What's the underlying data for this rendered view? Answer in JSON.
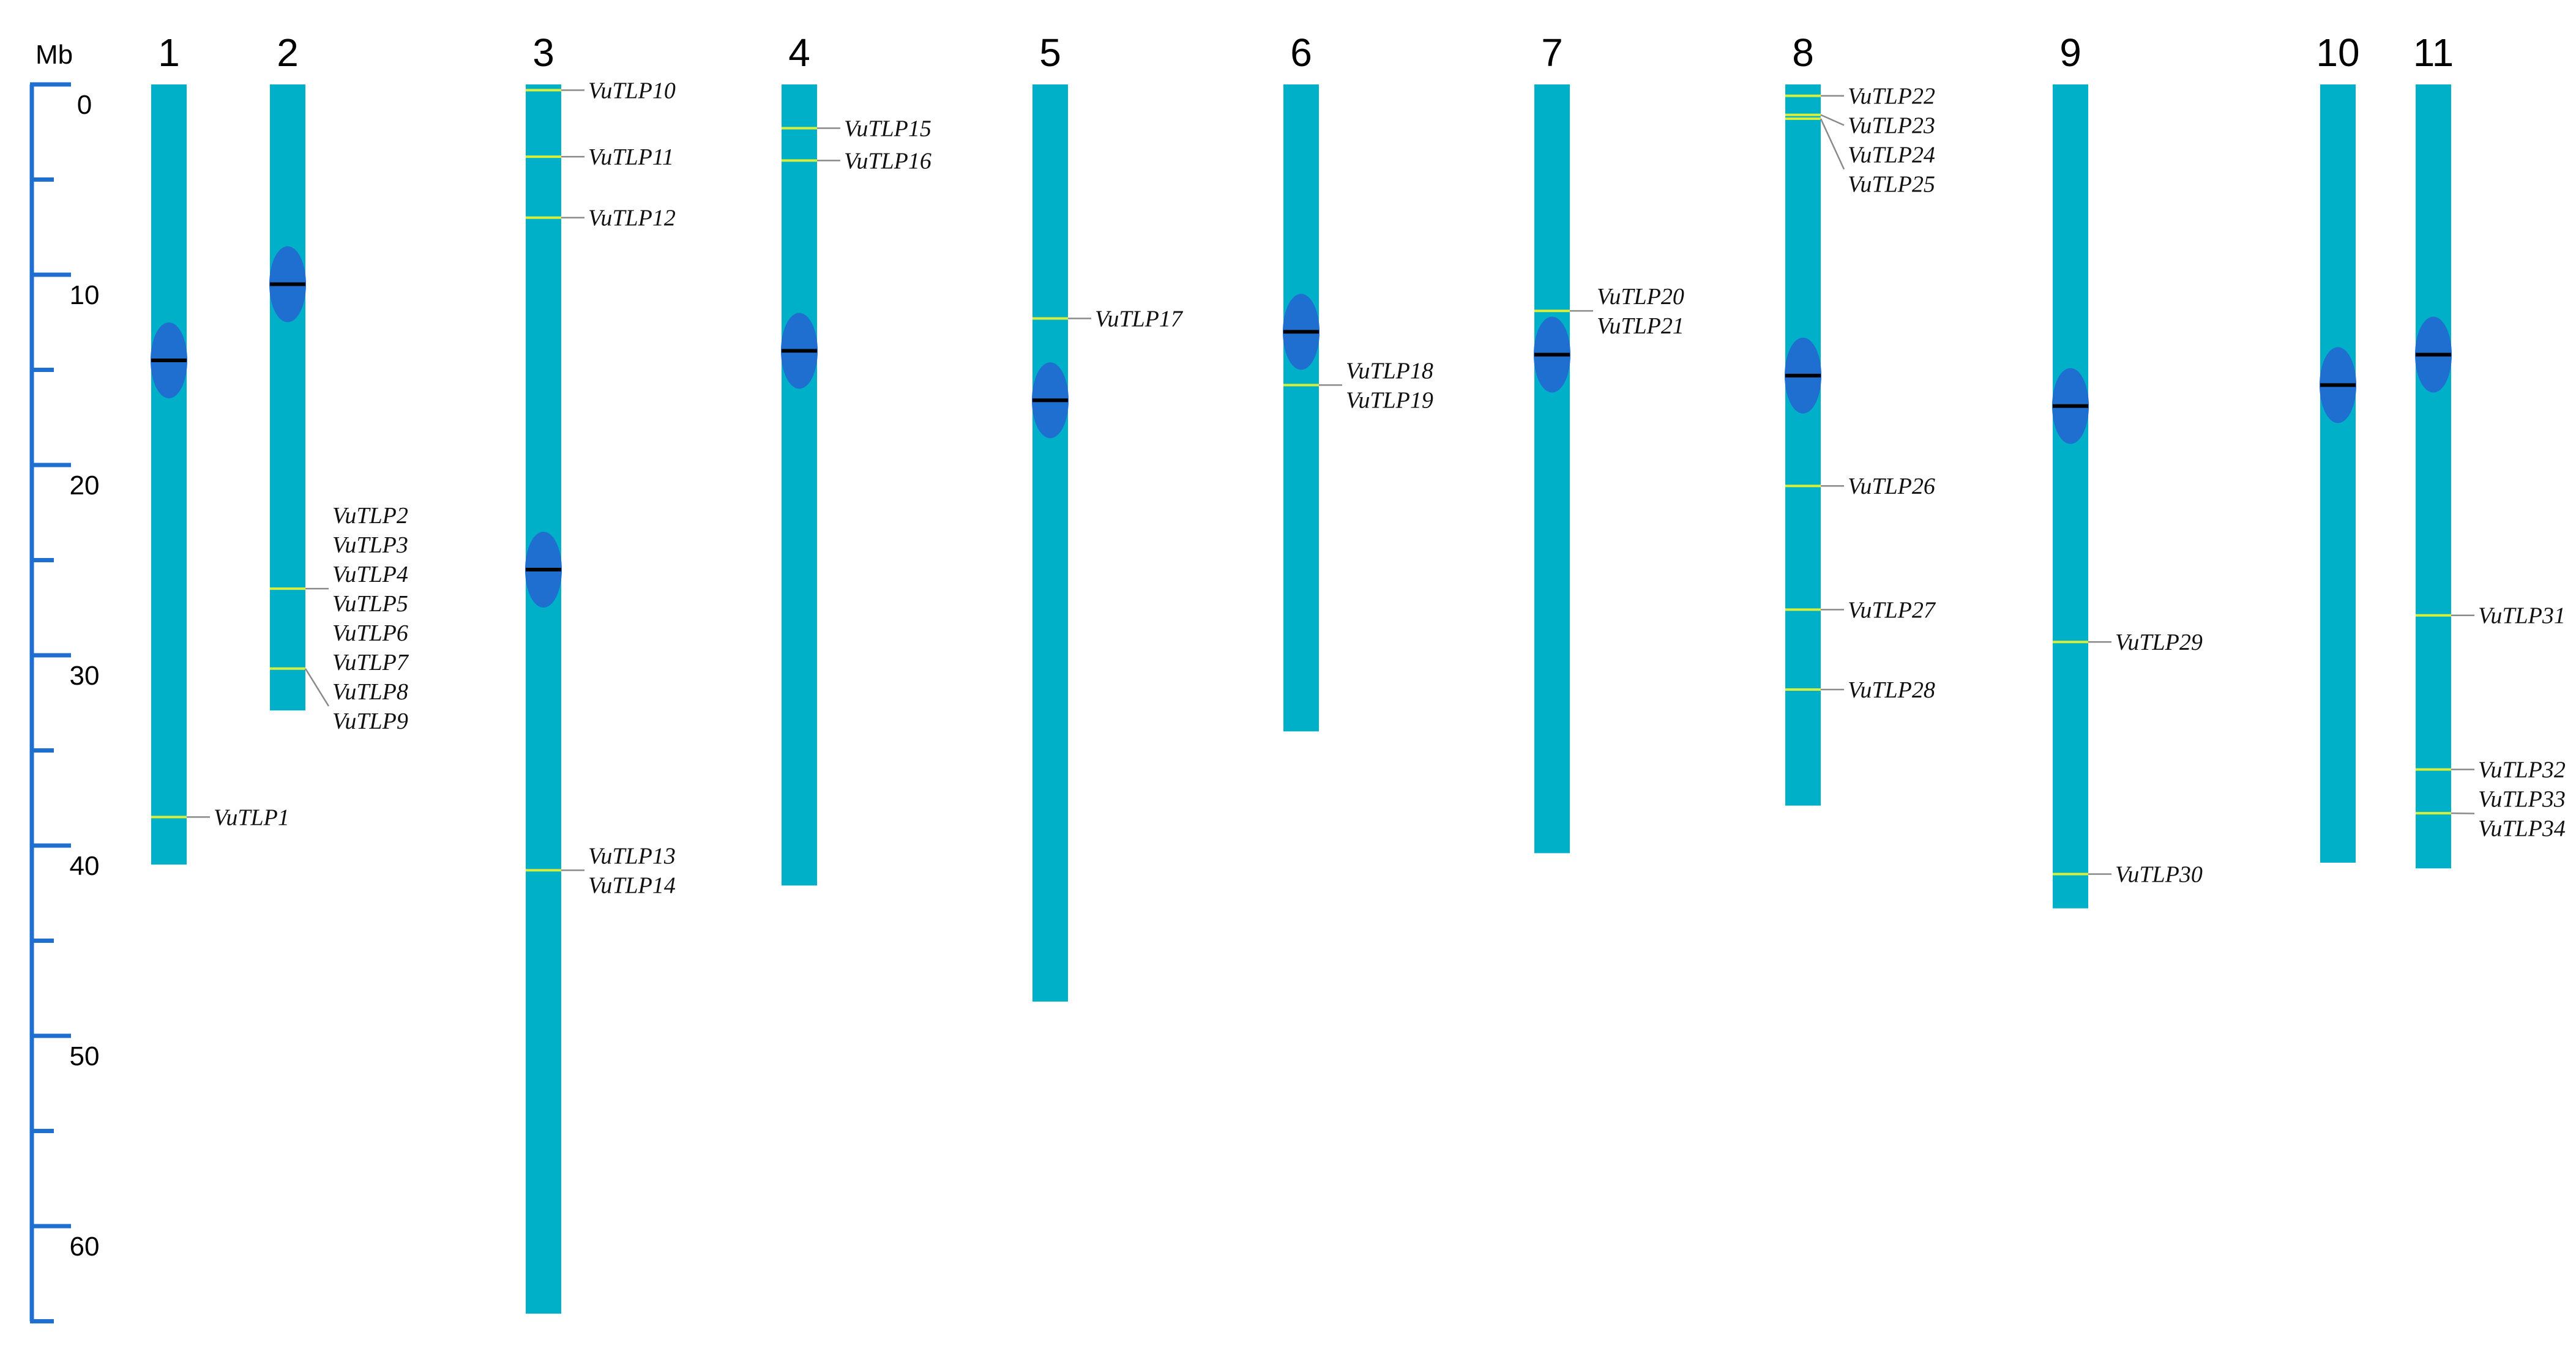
{
  "scale": {
    "unit": "Mb",
    "ticks": [
      0,
      10,
      20,
      30,
      40,
      50,
      60
    ],
    "max": 65
  },
  "colors": {
    "chromosome": "#00b0c8",
    "centromere": "#1f6fd0",
    "centromere_line": "#000000",
    "gene_marker": "#d8ee3a",
    "leader_line": "#8a8a8a",
    "axis": "#1f6fd0"
  },
  "chromosomes": [
    {
      "name": "1",
      "length": 41.0,
      "centromere": 14.5,
      "genes": [
        {
          "pos": 38.5,
          "labels": [
            "VuTLP1"
          ]
        }
      ]
    },
    {
      "name": "2",
      "length": 32.9,
      "centromere": 10.5,
      "genes": [
        {
          "pos": 26.5,
          "labels": [
            "VuTLP2",
            "VuTLP3",
            "VuTLP4",
            "VuTLP5",
            "VuTLP6",
            "VuTLP7"
          ]
        },
        {
          "pos": 30.7,
          "labels": [
            "VuTLP8",
            "VuTLP9"
          ]
        }
      ]
    },
    {
      "name": "3",
      "length": 64.6,
      "centromere": 25.5,
      "genes": [
        {
          "pos": 0.3,
          "labels": [
            "VuTLP10"
          ]
        },
        {
          "pos": 3.8,
          "labels": [
            "VuTLP11"
          ]
        },
        {
          "pos": 7.0,
          "labels": [
            "VuTLP12"
          ]
        },
        {
          "pos": 41.3,
          "labels": [
            "VuTLP13",
            "VuTLP14"
          ]
        }
      ]
    },
    {
      "name": "4",
      "length": 42.1,
      "centromere": 14.0,
      "genes": [
        {
          "pos": 2.3,
          "labels": [
            "VuTLP15"
          ]
        },
        {
          "pos": 4.0,
          "labels": [
            "VuTLP16"
          ]
        }
      ]
    },
    {
      "name": "5",
      "length": 48.2,
      "centromere": 16.6,
      "genes": [
        {
          "pos": 12.3,
          "labels": [
            "VuTLP17"
          ]
        }
      ]
    },
    {
      "name": "6",
      "length": 34.0,
      "centromere": 13.0,
      "genes": [
        {
          "pos": 15.8,
          "labels": [
            "VuTLP18",
            "VuTLP19"
          ]
        }
      ]
    },
    {
      "name": "7",
      "length": 40.4,
      "centromere": 14.2,
      "genes": [
        {
          "pos": 11.9,
          "labels": [
            "VuTLP20",
            "VuTLP21"
          ]
        }
      ]
    },
    {
      "name": "8",
      "length": 37.9,
      "centromere": 15.3,
      "genes": [
        {
          "pos": 0.6,
          "labels": [
            "VuTLP22"
          ]
        },
        {
          "pos": 1.6,
          "labels": [
            "VuTLP23"
          ]
        },
        {
          "pos": 1.8,
          "labels": [
            "VuTLP24",
            "VuTLP25"
          ]
        },
        {
          "pos": 21.1,
          "labels": [
            "VuTLP26"
          ]
        },
        {
          "pos": 27.6,
          "labels": [
            "VuTLP27"
          ]
        },
        {
          "pos": 31.8,
          "labels": [
            "VuTLP28"
          ]
        }
      ]
    },
    {
      "name": "9",
      "length": 43.3,
      "centromere": 16.9,
      "genes": [
        {
          "pos": 29.3,
          "labels": [
            "VuTLP29"
          ]
        },
        {
          "pos": 41.5,
          "labels": [
            "VuTLP30"
          ]
        }
      ]
    },
    {
      "name": "10",
      "length": 40.9,
      "centromere": 15.8,
      "genes": []
    },
    {
      "name": "11",
      "length": 41.2,
      "centromere": 14.2,
      "genes": [
        {
          "pos": 27.9,
          "labels": [
            "VuTLP31"
          ]
        },
        {
          "pos": 36.0,
          "labels": [
            "VuTLP32"
          ]
        },
        {
          "pos": 38.3,
          "labels": [
            "VuTLP33",
            "VuTLP34"
          ]
        }
      ]
    }
  ]
}
